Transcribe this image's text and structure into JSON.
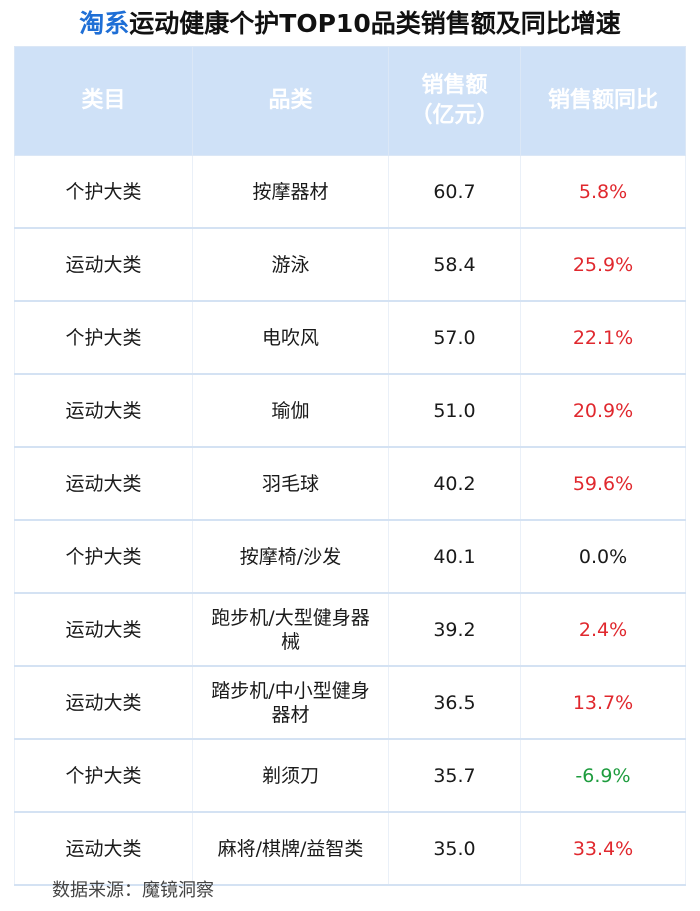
{
  "header": {
    "title_brand": "淘系",
    "title_rest": "运动健康个护TOP10品类销售额及同比增速"
  },
  "columns": {
    "category": "类目",
    "product": "品类",
    "sales_line1": "销售额",
    "sales_line2": "（亿元）",
    "yoy": "销售额同比"
  },
  "colors": {
    "header_bg": "#cfe1f7",
    "brand_blue": "#1f6fd6",
    "positive_red": "#e0282e",
    "negative_green": "#1e9c3e"
  },
  "chart_data": {
    "type": "table",
    "title": "淘系运动健康个护TOP10品类销售额及同比增速",
    "columns": [
      "类目",
      "品类",
      "销售额（亿元）",
      "销售额同比"
    ],
    "rows": [
      {
        "category": "个护大类",
        "product": "按摩器材",
        "sales": "60.7",
        "yoy": "5.8%",
        "trend": "up"
      },
      {
        "category": "运动大类",
        "product": "游泳",
        "sales": "58.4",
        "yoy": "25.9%",
        "trend": "up"
      },
      {
        "category": "个护大类",
        "product": "电吹风",
        "sales": "57.0",
        "yoy": "22.1%",
        "trend": "up"
      },
      {
        "category": "运动大类",
        "product": "瑜伽",
        "sales": "51.0",
        "yoy": "20.9%",
        "trend": "up"
      },
      {
        "category": "运动大类",
        "product": "羽毛球",
        "sales": "40.2",
        "yoy": "59.6%",
        "trend": "up"
      },
      {
        "category": "个护大类",
        "product": "按摩椅/沙发",
        "sales": "40.1",
        "yoy": "0.0%",
        "trend": "flat"
      },
      {
        "category": "运动大类",
        "product": "跑步机/大型健身器械",
        "sales": "39.2",
        "yoy": "2.4%",
        "trend": "up"
      },
      {
        "category": "运动大类",
        "product": "踏步机/中小型健身器材",
        "sales": "36.5",
        "yoy": "13.7%",
        "trend": "up"
      },
      {
        "category": "个护大类",
        "product": "剃须刀",
        "sales": "35.7",
        "yoy": "-6.9%",
        "trend": "down"
      },
      {
        "category": "运动大类",
        "product": "麻将/棋牌/益智类",
        "sales": "35.0",
        "yoy": "33.4%",
        "trend": "up"
      }
    ]
  },
  "footer": {
    "source": "数据来源：魔镜洞察"
  }
}
